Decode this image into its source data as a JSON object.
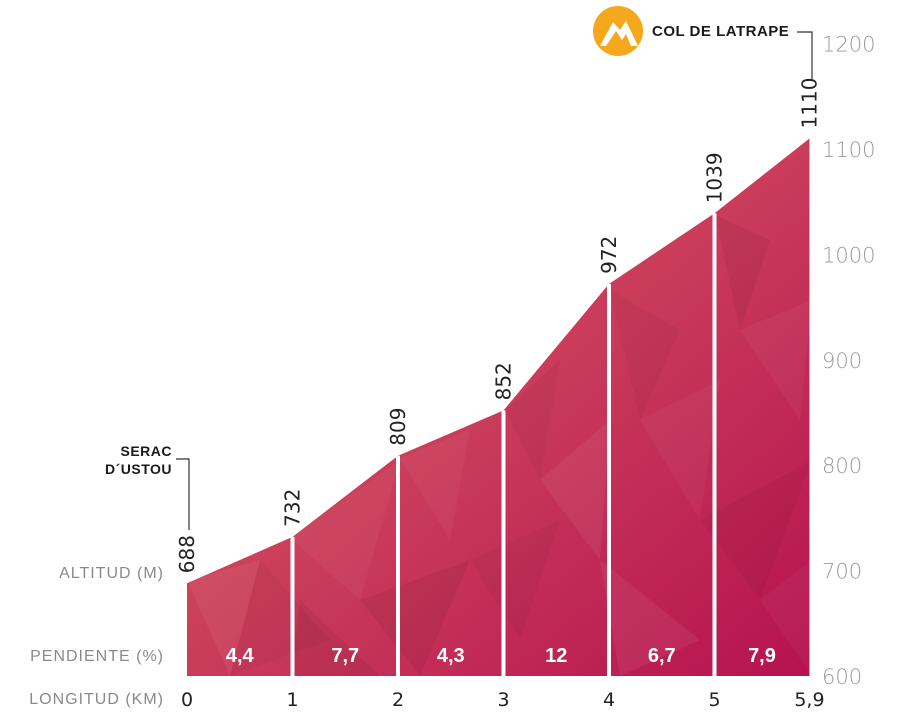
{
  "chart_data": {
    "type": "area",
    "x_km": [
      0,
      1,
      2,
      3,
      4,
      5,
      5.9
    ],
    "x_tick_labels": [
      "0",
      "1",
      "2",
      "3",
      "4",
      "5",
      "5,9"
    ],
    "altitudes": [
      688,
      732,
      809,
      852,
      972,
      1039,
      1110
    ],
    "altitude_labels": [
      "688",
      "732",
      "809",
      "852",
      "972",
      "1039",
      "1110"
    ],
    "gradients": [
      "4,4",
      "7,7",
      "4,3",
      "12",
      "6,7",
      "7,9"
    ],
    "y_ticks": [
      600,
      700,
      800,
      900,
      1000,
      1100,
      1200
    ],
    "y_tick_labels": [
      "600",
      "700",
      "800",
      "900",
      "1000",
      "1100",
      "1200"
    ],
    "ylim": [
      600,
      1200
    ],
    "xlim": [
      0,
      5.9
    ],
    "labels": {
      "altitude": "ALTITUD (M)",
      "gradient": "PENDIENTE (%)",
      "length": "LONGITUD (KM)"
    },
    "start_name": [
      "SERAC",
      "D´USTOU"
    ],
    "summit_name": "COL DE LATRAPE",
    "colors": {
      "fill_start": "#d9625c",
      "fill_end": "#b5124f",
      "icon": "#f5a81c",
      "divider": "#ffffff"
    }
  }
}
